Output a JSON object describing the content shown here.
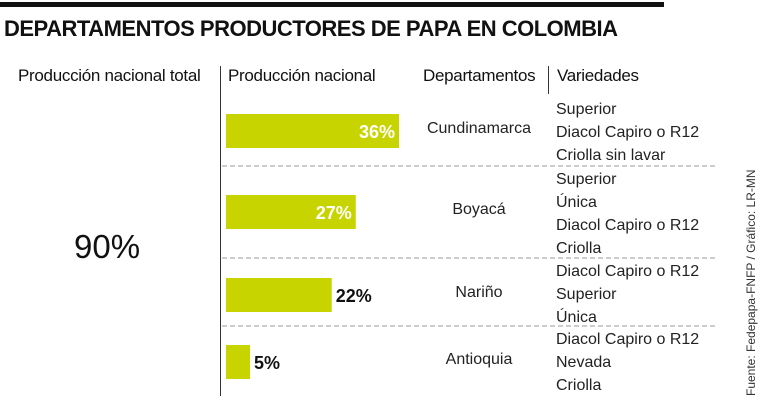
{
  "title": "DEPARTAMENTOS PRODUCTORES DE PAPA EN COLOMBIA",
  "headers": {
    "total": "Producción nacional total",
    "production": "Producción nacional",
    "departments": "Departamentos",
    "varieties": "Variedades"
  },
  "total_value": "90%",
  "source": "Fuente: Fedepapa-FNFP / Gráfico: LR-MN",
  "colors": {
    "bar": "#c8d400",
    "text": "#111111",
    "divider": "#999999"
  },
  "chart_data": {
    "type": "bar",
    "orientation": "horizontal",
    "categories": [
      "Cundinamarca",
      "Boyacá",
      "Nariño",
      "Antioquia"
    ],
    "values": [
      36,
      27,
      22,
      5
    ],
    "labels": [
      "36%",
      "27%",
      "22%",
      "5%"
    ],
    "xlim": [
      0,
      36
    ]
  },
  "rows": [
    {
      "department": "Cundinamarca",
      "varieties": [
        "Superior",
        "Diacol Capiro o R12",
        "Criolla sin lavar"
      ]
    },
    {
      "department": "Boyacá",
      "varieties": [
        "Superior",
        "Única",
        "Diacol Capiro o R12",
        "Criolla"
      ]
    },
    {
      "department": "Nariño",
      "varieties": [
        "Diacol Capiro o R12",
        "Superior",
        "Única"
      ]
    },
    {
      "department": "Antioquia",
      "varieties": [
        "Diacol Capiro o R12",
        "Nevada",
        "Criolla"
      ]
    }
  ]
}
